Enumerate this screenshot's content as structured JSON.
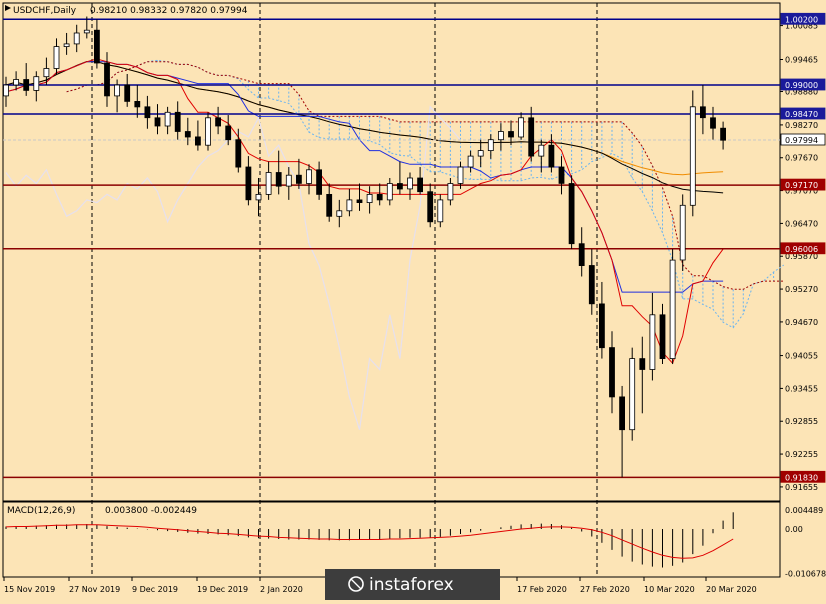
{
  "header": {
    "symbol_line": "USDCHF,Daily",
    "ohlc": "0.98210 0.98332 0.97820 0.97994"
  },
  "watermark": {
    "text": "instaforex"
  },
  "colors": {
    "background": "#fce4b6",
    "bull_body": "#ffffff",
    "bear_body": "#000000",
    "red_line": "#e00000",
    "blue_line": "#1f2fe0",
    "orange_line": "#f08c00",
    "black_line": "#000000",
    "lavender_line": "#e6e0ee",
    "cloud_blue": "#6ab4f0",
    "level_blue": "#00008b",
    "level_red": "#8b0000",
    "level_dark_red": "#a00000"
  },
  "chart_data": {
    "type": "candlestick",
    "instrument": "USDCHF",
    "timeframe": "Daily",
    "ohlc_last": {
      "open": 0.9821,
      "high": 0.98332,
      "low": 0.9782,
      "close": 0.97994
    },
    "ylim": [
      0.91635,
      1.0026
    ],
    "price_ticks": [
      "1.00085",
      "0.99465",
      "0.98880",
      "0.98270",
      "0.97670",
      "0.97070",
      "0.96470",
      "0.95870",
      "0.95270",
      "0.94670",
      "0.94055",
      "0.93455",
      "0.92855",
      "0.92255",
      "0.91655"
    ],
    "date_labels": [
      "15 Nov 2019",
      "27 Nov 2019",
      "9 Dec 2019",
      "19 Dec 2019",
      "2 Jan 2020",
      "17 Feb 2020",
      "27 Feb 2020",
      "10 Mar 2020",
      "20 Mar 2020"
    ],
    "horizontal_levels": [
      {
        "label": "1.00200",
        "value": 1.002,
        "style": "blue"
      },
      {
        "label": "0.99000",
        "value": 0.99,
        "style": "blue"
      },
      {
        "label": "0.98470",
        "value": 0.9847,
        "style": "blue"
      },
      {
        "label": "0.97994",
        "value": 0.97994,
        "style": "current"
      },
      {
        "label": "0.97170",
        "value": 0.9717,
        "style": "red"
      },
      {
        "label": "0.96006",
        "value": 0.96006,
        "style": "red"
      },
      {
        "label": "0.91830",
        "value": 0.9183,
        "style": "red"
      }
    ],
    "candles": [
      [
        0.988,
        0.9915,
        0.986,
        0.99
      ],
      [
        0.99,
        0.9925,
        0.989,
        0.991
      ],
      [
        0.991,
        0.994,
        0.988,
        0.989
      ],
      [
        0.989,
        0.9925,
        0.987,
        0.9915
      ],
      [
        0.9915,
        0.995,
        0.99,
        0.993
      ],
      [
        0.993,
        0.9985,
        0.992,
        0.997
      ],
      [
        0.997,
        0.9995,
        0.9955,
        0.9975
      ],
      [
        0.9975,
        1.001,
        0.996,
        0.9995
      ],
      [
        0.9995,
        1.0025,
        0.9985,
        1.0
      ],
      [
        1.0,
        1.002,
        0.993,
        0.994
      ],
      [
        0.994,
        0.996,
        0.986,
        0.988
      ],
      [
        0.988,
        0.991,
        0.985,
        0.99
      ],
      [
        0.99,
        0.992,
        0.986,
        0.987
      ],
      [
        0.987,
        0.99,
        0.984,
        0.986
      ],
      [
        0.986,
        0.988,
        0.982,
        0.984
      ],
      [
        0.984,
        0.9865,
        0.981,
        0.9825
      ],
      [
        0.9825,
        0.986,
        0.981,
        0.985
      ],
      [
        0.985,
        0.987,
        0.98,
        0.9815
      ],
      [
        0.9815,
        0.984,
        0.979,
        0.9805
      ],
      [
        0.9805,
        0.9835,
        0.978,
        0.979
      ],
      [
        0.979,
        0.985,
        0.978,
        0.984
      ],
      [
        0.984,
        0.986,
        0.981,
        0.9825
      ],
      [
        0.9825,
        0.9845,
        0.979,
        0.98
      ],
      [
        0.98,
        0.982,
        0.974,
        0.975
      ],
      [
        0.975,
        0.977,
        0.968,
        0.969
      ],
      [
        0.969,
        0.973,
        0.966,
        0.97
      ],
      [
        0.97,
        0.976,
        0.969,
        0.974
      ],
      [
        0.974,
        0.978,
        0.97,
        0.9715
      ],
      [
        0.9715,
        0.975,
        0.969,
        0.9735
      ],
      [
        0.9735,
        0.9765,
        0.971,
        0.972
      ],
      [
        0.972,
        0.9755,
        0.97,
        0.9745
      ],
      [
        0.9745,
        0.976,
        0.969,
        0.97
      ],
      [
        0.97,
        0.972,
        0.965,
        0.966
      ],
      [
        0.966,
        0.969,
        0.964,
        0.967
      ],
      [
        0.967,
        0.971,
        0.966,
        0.969
      ],
      [
        0.969,
        0.972,
        0.967,
        0.9685
      ],
      [
        0.9685,
        0.9715,
        0.9665,
        0.97
      ],
      [
        0.97,
        0.972,
        0.968,
        0.969
      ],
      [
        0.969,
        0.973,
        0.968,
        0.972
      ],
      [
        0.972,
        0.976,
        0.97,
        0.971
      ],
      [
        0.971,
        0.974,
        0.969,
        0.973
      ],
      [
        0.973,
        0.975,
        0.97,
        0.9705
      ],
      [
        0.9705,
        0.972,
        0.964,
        0.965
      ],
      [
        0.965,
        0.97,
        0.964,
        0.969
      ],
      [
        0.969,
        0.973,
        0.968,
        0.972
      ],
      [
        0.972,
        0.976,
        0.971,
        0.975
      ],
      [
        0.975,
        0.978,
        0.974,
        0.977
      ],
      [
        0.977,
        0.98,
        0.975,
        0.978
      ],
      [
        0.978,
        0.981,
        0.9765,
        0.98
      ],
      [
        0.98,
        0.983,
        0.978,
        0.9815
      ],
      [
        0.9815,
        0.9835,
        0.979,
        0.9805
      ],
      [
        0.9805,
        0.985,
        0.98,
        0.984
      ],
      [
        0.984,
        0.986,
        0.976,
        0.977
      ],
      [
        0.977,
        0.98,
        0.974,
        0.979
      ],
      [
        0.979,
        0.981,
        0.974,
        0.975
      ],
      [
        0.975,
        0.977,
        0.97,
        0.972
      ],
      [
        0.972,
        0.9735,
        0.96,
        0.961
      ],
      [
        0.961,
        0.964,
        0.955,
        0.957
      ],
      [
        0.957,
        0.96,
        0.948,
        0.95
      ],
      [
        0.95,
        0.954,
        0.94,
        0.942
      ],
      [
        0.942,
        0.945,
        0.93,
        0.933
      ],
      [
        0.933,
        0.935,
        0.9183,
        0.927
      ],
      [
        0.927,
        0.942,
        0.925,
        0.94
      ],
      [
        0.94,
        0.944,
        0.93,
        0.938
      ],
      [
        0.938,
        0.952,
        0.936,
        0.948
      ],
      [
        0.948,
        0.95,
        0.939,
        0.94
      ],
      [
        0.94,
        0.96,
        0.939,
        0.958
      ],
      [
        0.958,
        0.97,
        0.956,
        0.968
      ],
      [
        0.968,
        0.989,
        0.966,
        0.986
      ],
      [
        0.986,
        0.99,
        0.981,
        0.984
      ],
      [
        0.984,
        0.986,
        0.98,
        0.9821
      ],
      [
        0.9821,
        0.9833,
        0.9782,
        0.9799
      ]
    ],
    "macd": {
      "name": "MACD(12,26,9)",
      "values_text": "0.003800 -0.002449",
      "ticks": [
        "0.004489",
        "0.00",
        "-0.010678"
      ],
      "ylim": [
        -0.011,
        0.0055
      ],
      "histogram": [
        0.0006,
        0.0007,
        0.0007,
        0.0008,
        0.0009,
        0.001,
        0.0011,
        0.0011,
        0.0012,
        0.001,
        0.0007,
        0.0005,
        0.0003,
        0.0001,
        -0.0001,
        -0.0003,
        -0.0005,
        -0.0007,
        -0.0009,
        -0.0011,
        -0.0012,
        -0.0013,
        -0.0015,
        -0.0017,
        -0.002,
        -0.0022,
        -0.0023,
        -0.0024,
        -0.0025,
        -0.0025,
        -0.0025,
        -0.0026,
        -0.0027,
        -0.0027,
        -0.0027,
        -0.0026,
        -0.0025,
        -0.0024,
        -0.0023,
        -0.0022,
        -0.0021,
        -0.0021,
        -0.0021,
        -0.0019,
        -0.0016,
        -0.0012,
        -0.0008,
        -0.0004,
        0.0,
        0.0004,
        0.0008,
        0.0011,
        0.0012,
        0.0013,
        0.0012,
        0.0009,
        0.0003,
        -0.0006,
        -0.0018,
        -0.0033,
        -0.005,
        -0.0066,
        -0.0078,
        -0.0085,
        -0.009,
        -0.0092,
        -0.0088,
        -0.008,
        -0.006,
        -0.004,
        -0.001,
        0.002,
        0.004
      ],
      "signal": [
        0.0005,
        0.0006,
        0.0006,
        0.0007,
        0.0008,
        0.0009,
        0.0009,
        0.001,
        0.001,
        0.001,
        0.0009,
        0.0008,
        0.0007,
        0.0006,
        0.0004,
        0.0002,
        0.0,
        -0.0002,
        -0.0004,
        -0.0006,
        -0.0008,
        -0.001,
        -0.0011,
        -0.0013,
        -0.0015,
        -0.0017,
        -0.0018,
        -0.002,
        -0.0021,
        -0.0022,
        -0.0023,
        -0.0024,
        -0.0024,
        -0.0025,
        -0.0025,
        -0.0025,
        -0.0025,
        -0.0025,
        -0.0024,
        -0.0024,
        -0.0023,
        -0.0022,
        -0.0021,
        -0.002,
        -0.0019,
        -0.0017,
        -0.0015,
        -0.0012,
        -0.0009,
        -0.0006,
        -0.0003,
        0.0,
        0.0002,
        0.0004,
        0.0005,
        0.0005,
        0.0004,
        0.0002,
        -0.0002,
        -0.0008,
        -0.0016,
        -0.0026,
        -0.0036,
        -0.0046,
        -0.0055,
        -0.0063,
        -0.0068,
        -0.007,
        -0.0069,
        -0.0063,
        -0.0052,
        -0.0038,
        -0.0024
      ]
    }
  }
}
